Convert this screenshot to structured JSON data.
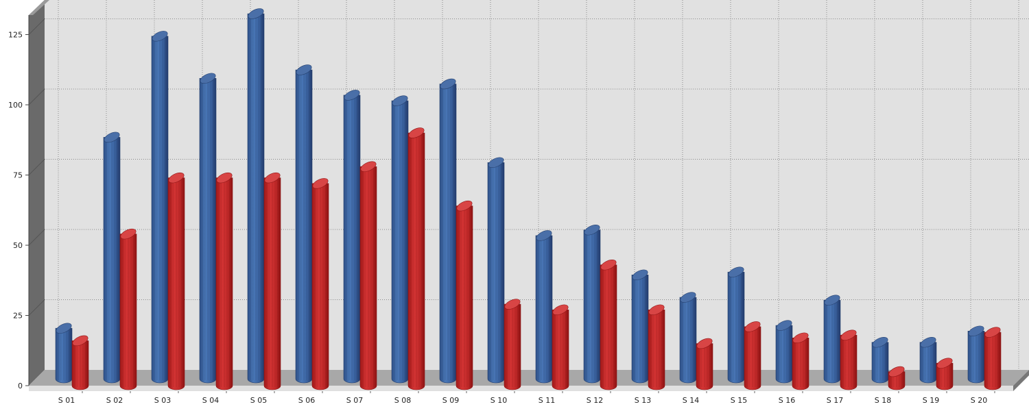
{
  "chart_data": {
    "type": "bar",
    "title": "",
    "xlabel": "",
    "ylabel": "",
    "ylim": [
      0,
      130
    ],
    "yticks": [
      0,
      25,
      50,
      75,
      100,
      125
    ],
    "grid": true,
    "legend": "none",
    "categories": [
      "S 01",
      "S 02",
      "S 03",
      "S 04",
      "S 05",
      "S 06",
      "S 07",
      "S 08",
      "S 09",
      "S 10",
      "S 11",
      "S 12",
      "S 13",
      "S 14",
      "S 15",
      "S 16",
      "S 17",
      "S 18",
      "S 19",
      "S 20"
    ],
    "series": [
      {
        "values": [
          18,
          86,
          122,
          107,
          130,
          110,
          101,
          99,
          105,
          77,
          51,
          53,
          37,
          29,
          38,
          19,
          28,
          13,
          13,
          17
        ],
        "color": "#3d6bab"
      },
      {
        "values": [
          16,
          54,
          74,
          74,
          74,
          72,
          78,
          90,
          64,
          29,
          27,
          43,
          27,
          15,
          21,
          17,
          18,
          5,
          8,
          19
        ],
        "color": "#c82a2a"
      }
    ]
  }
}
